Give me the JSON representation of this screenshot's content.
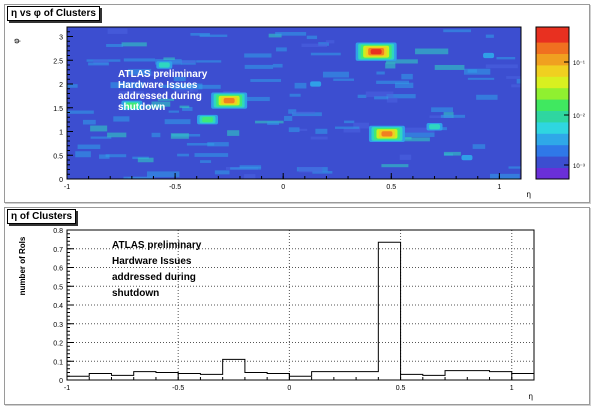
{
  "chart_data": [
    {
      "type": "heatmap",
      "title": "η vs φ of Clusters",
      "xlabel": "η",
      "ylabel": "φ",
      "xlim": [
        -1,
        1.1
      ],
      "ylim": [
        0,
        3.2
      ],
      "xticks": [
        "-1",
        "-0.5",
        "0",
        "0.5",
        "1"
      ],
      "yticks": [
        "0",
        "0.5",
        "1",
        "1.5",
        "2",
        "2.5",
        "3"
      ],
      "colorbar": {
        "scale": "log",
        "ticks": [
          "10⁻³",
          "10⁻²",
          "10⁻¹"
        ]
      },
      "annotation": [
        "ATLAS preliminary",
        "Hardware Issues",
        "addressed during",
        "shutdown"
      ],
      "hotspots": [
        {
          "eta": 0.43,
          "phi": 2.68,
          "level": 1.0
        },
        {
          "eta": 0.48,
          "phi": 0.95,
          "level": 0.9
        },
        {
          "eta": -0.25,
          "phi": 1.65,
          "level": 0.85
        },
        {
          "eta": -0.35,
          "phi": 1.25,
          "level": 0.55
        },
        {
          "eta": -0.7,
          "phi": 1.55,
          "level": 0.45
        },
        {
          "eta": 0.7,
          "phi": 1.1,
          "level": 0.35
        },
        {
          "eta": -0.55,
          "phi": 2.4,
          "level": 0.35
        },
        {
          "eta": 0.85,
          "phi": 0.45,
          "level": 0.3
        },
        {
          "eta": 0.15,
          "phi": 2.0,
          "level": 0.3
        },
        {
          "eta": 0.95,
          "phi": 2.6,
          "level": 0.3
        }
      ],
      "colors": {
        "background": "#3c4ed0",
        "bands": [
          "#3c4ed0",
          "#2fa0e8",
          "#2fd6c0",
          "#40e878",
          "#c8f020",
          "#f0d020",
          "#f08020",
          "#e83020"
        ]
      }
    },
    {
      "type": "histogram",
      "title": "η of Clusters",
      "xlabel": "η",
      "ylabel": "number of RoIs",
      "xlim": [
        -1,
        1.1
      ],
      "ylim": [
        0,
        0.8
      ],
      "xticks": [
        "-1",
        "-0.5",
        "0",
        "0.5",
        "1"
      ],
      "yticks": [
        "0",
        "0.1",
        "0.2",
        "0.3",
        "0.4",
        "0.5",
        "0.6",
        "0.7",
        "0.8"
      ],
      "annotation": [
        "ATLAS preliminary",
        "Hardware Issues",
        "addressed during",
        "shutdown"
      ],
      "bins": [
        {
          "lo": -1.0,
          "hi": -0.9,
          "value": 0.02
        },
        {
          "lo": -0.9,
          "hi": -0.8,
          "value": 0.035
        },
        {
          "lo": -0.8,
          "hi": -0.7,
          "value": 0.025
        },
        {
          "lo": -0.7,
          "hi": -0.6,
          "value": 0.045
        },
        {
          "lo": -0.6,
          "hi": -0.5,
          "value": 0.04
        },
        {
          "lo": -0.5,
          "hi": -0.4,
          "value": 0.035
        },
        {
          "lo": -0.4,
          "hi": -0.3,
          "value": 0.03
        },
        {
          "lo": -0.3,
          "hi": -0.2,
          "value": 0.11
        },
        {
          "lo": -0.2,
          "hi": -0.1,
          "value": 0.04
        },
        {
          "lo": -0.1,
          "hi": 0.0,
          "value": 0.035
        },
        {
          "lo": 0.0,
          "hi": 0.1,
          "value": 0.02
        },
        {
          "lo": 0.1,
          "hi": 0.2,
          "value": 0.045
        },
        {
          "lo": 0.2,
          "hi": 0.3,
          "value": 0.045
        },
        {
          "lo": 0.3,
          "hi": 0.4,
          "value": 0.045
        },
        {
          "lo": 0.4,
          "hi": 0.5,
          "value": 0.735
        },
        {
          "lo": 0.5,
          "hi": 0.6,
          "value": 0.03
        },
        {
          "lo": 0.6,
          "hi": 0.7,
          "value": 0.025
        },
        {
          "lo": 0.7,
          "hi": 0.8,
          "value": 0.05
        },
        {
          "lo": 0.8,
          "hi": 0.9,
          "value": 0.05
        },
        {
          "lo": 0.9,
          "hi": 1.0,
          "value": 0.045
        },
        {
          "lo": 1.0,
          "hi": 1.1,
          "value": 0.035
        }
      ],
      "grid": true
    }
  ]
}
